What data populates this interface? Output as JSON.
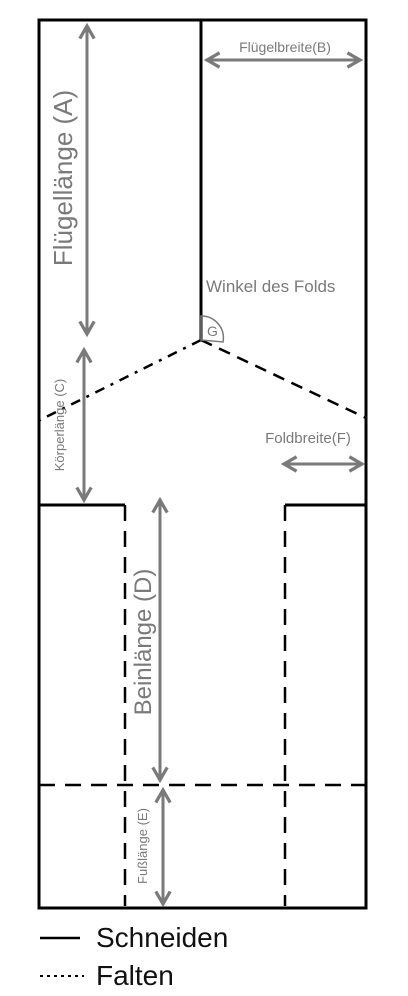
{
  "labels": {
    "wing_length": "Flügellänge (A)",
    "wing_width": "Flügelbreite(B)",
    "body_length": "Körperlänge (C)",
    "leg_length": "Beinlänge (D)",
    "foot_length": "Fußlänge (E)",
    "fold_width": "Foldbreite(F)",
    "fold_angle": "Winkel des Folds",
    "angle_marker": "G"
  },
  "legend": {
    "cut": "Schneiden",
    "fold": "Falten"
  },
  "colors": {
    "outline": "#000000",
    "measure": "#7a7a7a",
    "text": "#7a7a7a",
    "legend_text": "#111111"
  }
}
